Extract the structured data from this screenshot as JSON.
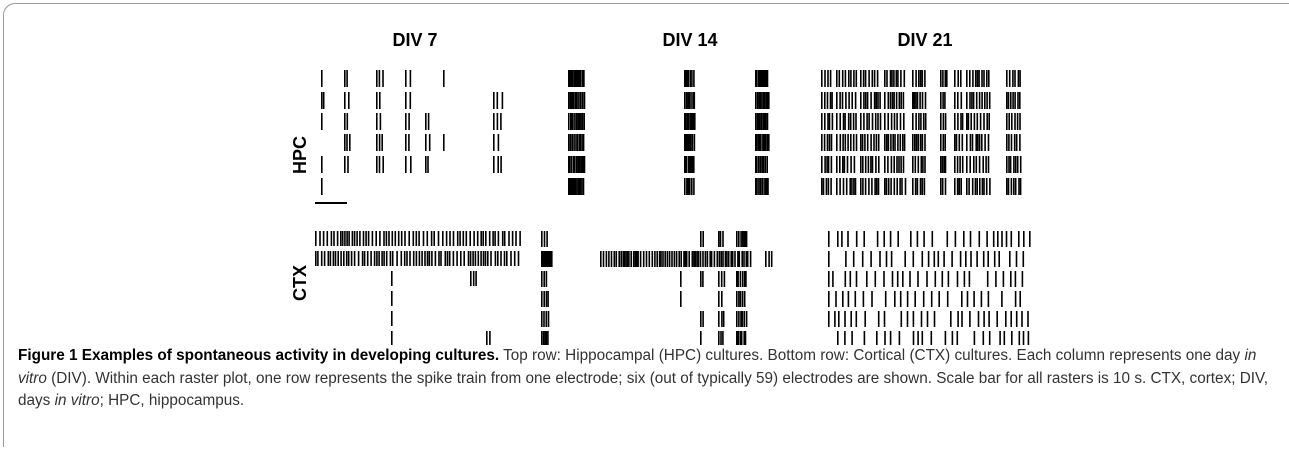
{
  "figure": {
    "columns": [
      "DIV 7",
      "DIV 14",
      "DIV 21"
    ],
    "rows": [
      "HPC",
      "CTX"
    ],
    "caption": {
      "title": "Figure 1 Examples of spontaneous activity in developing cultures.",
      "body": [
        " Top row: Hippocampal (HPC) cultures. Bottom row: Cortical (CTX) cultures. Each column represents one day ",
        "in vitro",
        " (DIV). Within each raster plot, one row represents the spike train from one electrode; six (out of typically 59) electrodes are shown. Scale bar for all rasters is 10 s. CTX, cortex; DIV, days ",
        "in vitro",
        "; HPC, hippocampus."
      ]
    }
  }
}
